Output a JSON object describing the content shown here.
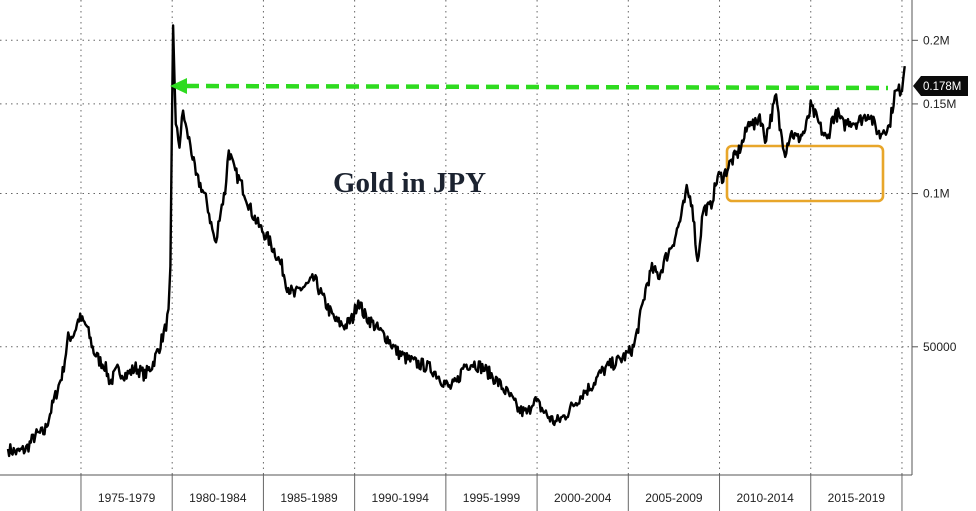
{
  "chart_data": {
    "type": "line",
    "title": "Gold in JPY",
    "xlabel": "",
    "ylabel": "",
    "y_scale": "log",
    "ylim": [
      28000,
      240000
    ],
    "y_ticks": [
      {
        "value": 50000,
        "label": "50000"
      },
      {
        "value": 100000,
        "label": "0.1M"
      },
      {
        "value": 150000,
        "label": "0.15M"
      },
      {
        "value": 200000,
        "label": "0.2M"
      }
    ],
    "x_categories": [
      "1975-1979",
      "1980-1984",
      "1985-1989",
      "1990-1994",
      "1995-1999",
      "2000-2004",
      "2005-2009",
      "2010-2014",
      "2015-2019"
    ],
    "last_value_label": "0.178M",
    "grid": true,
    "colors": {
      "line": "#000000",
      "arrow": "#2edb1f",
      "highlight_box": "#e8a62a",
      "badge": "#0b0b0b"
    },
    "series": [
      {
        "values": [
          [
            1971.0,
            31500
          ],
          [
            1971.5,
            31000
          ],
          [
            1972.0,
            31500
          ],
          [
            1972.5,
            33500
          ],
          [
            1973.0,
            34000
          ],
          [
            1973.3,
            37000
          ],
          [
            1973.6,
            40000
          ],
          [
            1974.0,
            44500
          ],
          [
            1974.3,
            52000
          ],
          [
            1974.6,
            53000
          ],
          [
            1974.9,
            57000
          ],
          [
            1975.3,
            55000
          ],
          [
            1975.7,
            49000
          ],
          [
            1976.0,
            47000
          ],
          [
            1976.3,
            46000
          ],
          [
            1976.6,
            42500
          ],
          [
            1977.0,
            45000
          ],
          [
            1977.5,
            44000
          ],
          [
            1978.0,
            45500
          ],
          [
            1978.5,
            44000
          ],
          [
            1978.9,
            46000
          ],
          [
            1979.3,
            50000
          ],
          [
            1979.6,
            54000
          ],
          [
            1979.8,
            58000
          ],
          [
            1979.9,
            70000
          ],
          [
            1980.05,
            215000
          ],
          [
            1980.2,
            135000
          ],
          [
            1980.4,
            125000
          ],
          [
            1980.6,
            145000
          ],
          [
            1980.8,
            132000
          ],
          [
            1981.0,
            125000
          ],
          [
            1981.3,
            108000
          ],
          [
            1981.6,
            103000
          ],
          [
            1981.9,
            96000
          ],
          [
            1982.2,
            85000
          ],
          [
            1982.4,
            79000
          ],
          [
            1982.6,
            91000
          ],
          [
            1982.9,
            101000
          ],
          [
            1983.1,
            122000
          ],
          [
            1983.4,
            111000
          ],
          [
            1983.7,
            106000
          ],
          [
            1984.0,
            100000
          ],
          [
            1984.3,
            93000
          ],
          [
            1984.7,
            87000
          ],
          [
            1985.0,
            84000
          ],
          [
            1985.3,
            81000
          ],
          [
            1985.7,
            76000
          ],
          [
            1986.0,
            72000
          ],
          [
            1986.3,
            66000
          ],
          [
            1986.7,
            63000
          ],
          [
            1987.0,
            65000
          ],
          [
            1987.4,
            66000
          ],
          [
            1987.8,
            68000
          ],
          [
            1988.2,
            63000
          ],
          [
            1988.6,
            59000
          ],
          [
            1989.0,
            56000
          ],
          [
            1989.5,
            55000
          ],
          [
            1989.9,
            57000
          ],
          [
            1990.2,
            62000
          ],
          [
            1990.5,
            58000
          ],
          [
            1990.9,
            56000
          ],
          [
            1991.3,
            54000
          ],
          [
            1991.8,
            52000
          ],
          [
            1992.3,
            49000
          ],
          [
            1992.8,
            47500
          ],
          [
            1993.3,
            46500
          ],
          [
            1993.8,
            46000
          ],
          [
            1994.3,
            45000
          ],
          [
            1994.8,
            43000
          ],
          [
            1995.2,
            41500
          ],
          [
            1995.6,
            42500
          ],
          [
            1996.0,
            46000
          ],
          [
            1996.5,
            46500
          ],
          [
            1997.0,
            45500
          ],
          [
            1997.5,
            44000
          ],
          [
            1998.0,
            42000
          ],
          [
            1998.5,
            40000
          ],
          [
            1999.0,
            37500
          ],
          [
            1999.5,
            37000
          ],
          [
            1999.8,
            39500
          ],
          [
            2000.2,
            38000
          ],
          [
            2000.6,
            36500
          ],
          [
            2001.0,
            35500
          ],
          [
            2001.5,
            36500
          ],
          [
            2002.0,
            38500
          ],
          [
            2002.5,
            40500
          ],
          [
            2003.0,
            42000
          ],
          [
            2003.5,
            44500
          ],
          [
            2004.0,
            46000
          ],
          [
            2004.5,
            47000
          ],
          [
            2005.0,
            48500
          ],
          [
            2005.3,
            50000
          ],
          [
            2005.6,
            56000
          ],
          [
            2006.0,
            66000
          ],
          [
            2006.3,
            71000
          ],
          [
            2006.7,
            69000
          ],
          [
            2007.0,
            74000
          ],
          [
            2007.5,
            81000
          ],
          [
            2007.9,
            90000
          ],
          [
            2008.2,
            101000
          ],
          [
            2008.5,
            96000
          ],
          [
            2008.8,
            73000
          ],
          [
            2009.1,
            93000
          ],
          [
            2009.5,
            94000
          ],
          [
            2009.9,
            108000
          ],
          [
            2010.2,
            108000
          ],
          [
            2010.6,
            115000
          ],
          [
            2011.0,
            120000
          ],
          [
            2011.3,
            127000
          ],
          [
            2011.7,
            141000
          ],
          [
            2011.9,
            135000
          ],
          [
            2012.2,
            143000
          ],
          [
            2012.5,
            128000
          ],
          [
            2012.8,
            140000
          ],
          [
            2013.1,
            155000
          ],
          [
            2013.3,
            135000
          ],
          [
            2013.6,
            121000
          ],
          [
            2013.9,
            132000
          ],
          [
            2014.3,
            128000
          ],
          [
            2014.7,
            133000
          ],
          [
            2015.0,
            148000
          ],
          [
            2015.3,
            141000
          ],
          [
            2015.6,
            133000
          ],
          [
            2015.9,
            127000
          ],
          [
            2016.2,
            141000
          ],
          [
            2016.5,
            143000
          ],
          [
            2016.8,
            136000
          ],
          [
            2017.1,
            139000
          ],
          [
            2017.5,
            138000
          ],
          [
            2017.9,
            141000
          ],
          [
            2018.2,
            144000
          ],
          [
            2018.5,
            136000
          ],
          [
            2018.8,
            130000
          ],
          [
            2019.0,
            134000
          ],
          [
            2019.3,
            135000
          ],
          [
            2019.6,
            157000
          ],
          [
            2019.9,
            160000
          ],
          [
            2020.0,
            162000
          ],
          [
            2020.15,
            178000
          ]
        ]
      }
    ]
  }
}
